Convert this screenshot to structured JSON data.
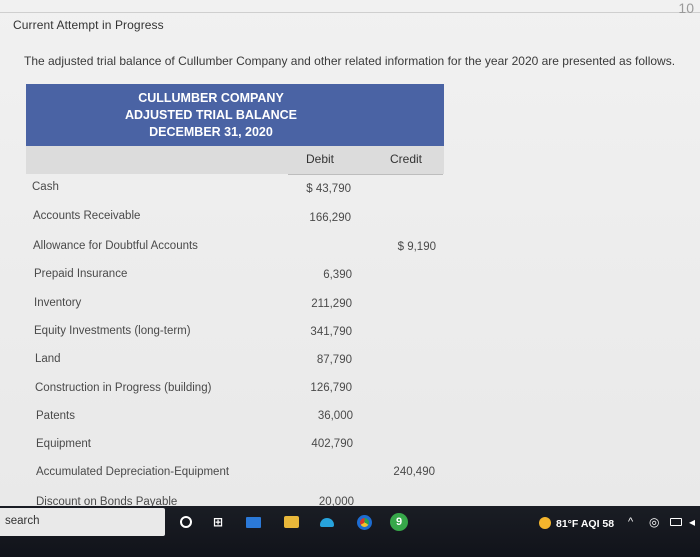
{
  "header": {
    "attempt_title": "Current Attempt in Progress",
    "corner_text": "10"
  },
  "intro": "The adjusted trial balance of Cullumber Company and other related information for the year 2020 are presented as follows.",
  "trial_balance": {
    "company": "CULLUMBER COMPANY",
    "title": "ADJUSTED TRIAL BALANCE",
    "date": "DECEMBER 31, 2020",
    "debit_label": "Debit",
    "credit_label": "Credit",
    "rows": [
      {
        "label": "Cash",
        "debit": "$ 43,790",
        "credit": ""
      },
      {
        "label": "Accounts Receivable",
        "debit": "166,290",
        "credit": ""
      },
      {
        "label": "Allowance for Doubtful Accounts",
        "debit": "",
        "credit": "$ 9,190"
      },
      {
        "label": "Prepaid Insurance",
        "debit": "6,390",
        "credit": ""
      },
      {
        "label": "Inventory",
        "debit": "211,290",
        "credit": ""
      },
      {
        "label": "Equity Investments (long-term)",
        "debit": "341,790",
        "credit": ""
      },
      {
        "label": "Land",
        "debit": "87,790",
        "credit": ""
      },
      {
        "label": "Construction in Progress (building)",
        "debit": "126,790",
        "credit": ""
      },
      {
        "label": "Patents",
        "debit": "36,000",
        "credit": ""
      },
      {
        "label": "Equipment",
        "debit": "402,790",
        "credit": ""
      },
      {
        "label": "Accumulated Depreciation-Equipment",
        "debit": "",
        "credit": "240,490"
      },
      {
        "label": "Discount on Bonds Payable",
        "debit": "20,000",
        "credit": ""
      }
    ]
  },
  "taskbar": {
    "search_text": "search",
    "weather": "81°F  AQI 58",
    "icons": [
      "circle-icon",
      "task-view-icon",
      "mail-icon",
      "file-explorer-icon",
      "edge-icon",
      "chrome-icon",
      "app-icon",
      "weather-icon",
      "chevron-up-icon",
      "network-icon",
      "battery-icon",
      "speaker-icon"
    ],
    "app_icon_glyph": "9"
  },
  "colors": {
    "table_header": "#4a63a4",
    "column_band": "#dcdcdc",
    "taskbar": "#14171e"
  }
}
